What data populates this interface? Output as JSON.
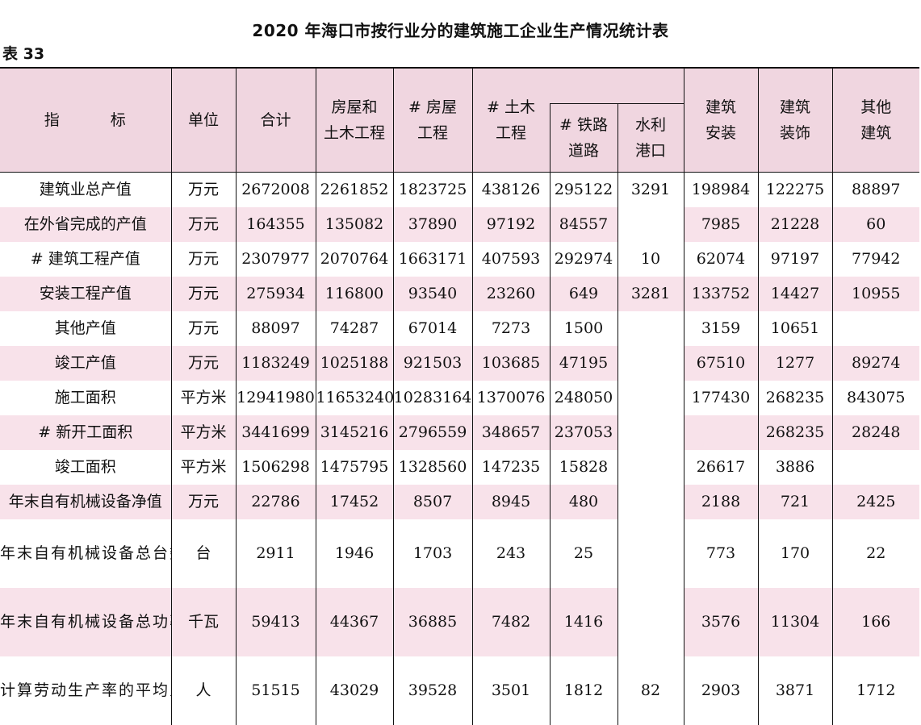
{
  "title": "2020 年海口市按行业分的建筑施工企业生产情况统计表",
  "table_no": "表 33",
  "header": {
    "indicator_a": "指",
    "indicator_b": "标",
    "unit": "单位",
    "total": "合计",
    "housing_civil_1": "房屋和",
    "housing_civil_2": "土木工程",
    "housing_1": "# 房屋",
    "housing_2": "工程",
    "civil_1": "# 土木",
    "civil_2": "工程",
    "rail_1": "# 铁路",
    "rail_2": "道路",
    "water_1": "水利",
    "water_2": "港口",
    "install_1": "建筑",
    "install_2": "安装",
    "decor_1": "建筑",
    "decor_2": "装饰",
    "other_1": "其他",
    "other_2": "建筑"
  },
  "rows": [
    {
      "indicator": "建筑业总产值",
      "unit": "万元",
      "values": [
        "2672008",
        "2261852",
        "1823725",
        "438126",
        "295122",
        "3291",
        "198984",
        "122275",
        "88897"
      ]
    },
    {
      "indicator": "在外省完成的产值",
      "unit": "万元",
      "values": [
        "164355",
        "135082",
        "37890",
        "97192",
        "84557",
        "",
        "7985",
        "21228",
        "60"
      ]
    },
    {
      "indicator": "# 建筑工程产值",
      "unit": "万元",
      "values": [
        "2307977",
        "2070764",
        "1663171",
        "407593",
        "292974",
        "10",
        "62074",
        "97197",
        "77942"
      ]
    },
    {
      "indicator": "安装工程产值",
      "unit": "万元",
      "values": [
        "275934",
        "116800",
        "93540",
        "23260",
        "649",
        "3281",
        "133752",
        "14427",
        "10955"
      ]
    },
    {
      "indicator": "其他产值",
      "unit": "万元",
      "values": [
        "88097",
        "74287",
        "67014",
        "7273",
        "1500",
        "",
        "3159",
        "10651",
        ""
      ]
    },
    {
      "indicator": "竣工产值",
      "unit": "万元",
      "values": [
        "1183249",
        "1025188",
        "921503",
        "103685",
        "47195",
        "",
        "67510",
        "1277",
        "89274"
      ]
    },
    {
      "indicator": "施工面积",
      "unit": "平方米",
      "values": [
        "12941980",
        "11653240",
        "10283164",
        "1370076",
        "248050",
        "",
        "177430",
        "268235",
        "843075"
      ]
    },
    {
      "indicator": "# 新开工面积",
      "unit": "平方米",
      "values": [
        "3441699",
        "3145216",
        "2796559",
        "348657",
        "237053",
        "",
        "",
        "268235",
        "28248"
      ]
    },
    {
      "indicator": "竣工面积",
      "unit": "平方米",
      "values": [
        "1506298",
        "1475795",
        "1328560",
        "147235",
        "15828",
        "",
        "26617",
        "3886",
        ""
      ]
    },
    {
      "indicator": "年末自有机械设备净值",
      "unit": "万元",
      "values": [
        "22786",
        "17452",
        "8507",
        "8945",
        "480",
        "",
        "2188",
        "721",
        "2425"
      ]
    },
    {
      "indicator": "年末自有机械设备总台数",
      "unit": "台",
      "values": [
        "2911",
        "1946",
        "1703",
        "243",
        "25",
        "",
        "773",
        "170",
        "22"
      ]
    },
    {
      "indicator": "年末自有机械设备总功率",
      "unit": "千瓦",
      "values": [
        "59413",
        "44367",
        "36885",
        "7482",
        "1416",
        "",
        "3576",
        "11304",
        "166"
      ]
    },
    {
      "indicator": "计算劳动生产率的平均人数",
      "unit": "人",
      "values": [
        "51515",
        "43029",
        "39528",
        "3501",
        "1812",
        "82",
        "2903",
        "3871",
        "1712"
      ]
    }
  ]
}
